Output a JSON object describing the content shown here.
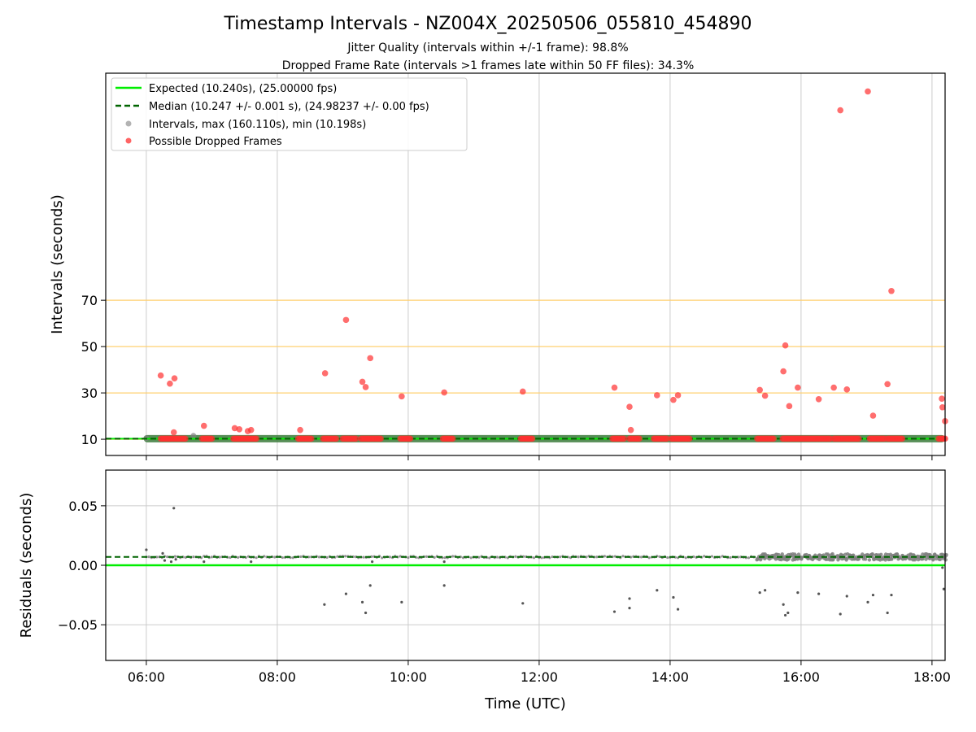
{
  "title": "Timestamp Intervals - NZ004X_20250506_055810_454890",
  "subtitle_line1": "Jitter Quality (intervals within +/-1 frame): 98.8%",
  "subtitle_line2": "Dropped Frame Rate (intervals >1 frames late within 50 FF files): 34.3%",
  "colors": {
    "expected": "#00ee00",
    "median": "#006400",
    "intervals": "#808080",
    "dropped": "#ff3030",
    "threshold": "#ffd070",
    "grid": "#cccccc",
    "band": "#3a7a3a"
  },
  "chart_data": [
    {
      "type": "scatter",
      "name": "intervals",
      "xlabel": "",
      "ylabel": "Intervals (seconds)",
      "x_unit": "hours UTC",
      "xlim": [
        5.38,
        18.2
      ],
      "ylim": [
        3,
        168
      ],
      "yticks": [
        10,
        30,
        50,
        70
      ],
      "ytick_labels": [
        "10",
        "30",
        "50",
        "70"
      ],
      "threshold_lines": [
        10,
        30,
        50,
        70
      ],
      "expected_value": 10.24,
      "median_value": 10.247,
      "legend": {
        "position": "top-left",
        "entries": [
          {
            "label": "Expected (10.240s), (25.00000 fps)",
            "style": "line-solid"
          },
          {
            "label": "Median (10.247 +/- 0.001 s), (24.98237 +/- 0.00 fps)",
            "style": "line-dashed"
          },
          {
            "label": "Intervals, max (160.110s), min (10.198s)",
            "style": "marker-gray"
          },
          {
            "label": "Possible Dropped Frames",
            "style": "marker-red"
          }
        ]
      },
      "interval_band": [
        6.0,
        18.2
      ],
      "dropped_outliers": [
        {
          "t": 6.22,
          "v": 37.5
        },
        {
          "t": 6.36,
          "v": 34.0
        },
        {
          "t": 6.43,
          "v": 36.3
        },
        {
          "t": 6.42,
          "v": 13.0
        },
        {
          "t": 6.88,
          "v": 15.8
        },
        {
          "t": 7.35,
          "v": 14.8
        },
        {
          "t": 7.42,
          "v": 14.3
        },
        {
          "t": 7.55,
          "v": 13.5
        },
        {
          "t": 7.6,
          "v": 14.0
        },
        {
          "t": 8.35,
          "v": 14.0
        },
        {
          "t": 8.73,
          "v": 38.5
        },
        {
          "t": 9.05,
          "v": 61.5
        },
        {
          "t": 9.3,
          "v": 34.8
        },
        {
          "t": 9.35,
          "v": 32.5
        },
        {
          "t": 9.42,
          "v": 45.0
        },
        {
          "t": 9.9,
          "v": 28.5
        },
        {
          "t": 10.55,
          "v": 30.2
        },
        {
          "t": 11.75,
          "v": 30.6
        },
        {
          "t": 13.15,
          "v": 32.3
        },
        {
          "t": 13.38,
          "v": 24.0
        },
        {
          "t": 13.4,
          "v": 14.0
        },
        {
          "t": 13.8,
          "v": 29.0
        },
        {
          "t": 14.05,
          "v": 27.0
        },
        {
          "t": 14.12,
          "v": 29.0
        },
        {
          "t": 15.37,
          "v": 31.3
        },
        {
          "t": 15.45,
          "v": 28.8
        },
        {
          "t": 15.73,
          "v": 39.3
        },
        {
          "t": 15.76,
          "v": 50.5
        },
        {
          "t": 15.82,
          "v": 24.3
        },
        {
          "t": 15.95,
          "v": 32.3
        },
        {
          "t": 16.27,
          "v": 27.3
        },
        {
          "t": 16.5,
          "v": 32.3
        },
        {
          "t": 16.6,
          "v": 152.0
        },
        {
          "t": 16.7,
          "v": 31.5
        },
        {
          "t": 17.02,
          "v": 160.11
        },
        {
          "t": 17.1,
          "v": 20.2
        },
        {
          "t": 17.32,
          "v": 33.8
        },
        {
          "t": 17.38,
          "v": 74.0
        },
        {
          "t": 18.15,
          "v": 27.5
        },
        {
          "t": 18.16,
          "v": 23.8
        },
        {
          "t": 18.2,
          "v": 17.8
        }
      ],
      "dropped_clusters_at_baseline": [
        [
          6.22,
          6.6
        ],
        [
          6.85,
          7.0
        ],
        [
          7.33,
          7.7
        ],
        [
          8.32,
          8.52
        ],
        [
          8.7,
          8.9
        ],
        [
          9.0,
          9.2
        ],
        [
          9.28,
          9.6
        ],
        [
          9.88,
          10.05
        ],
        [
          10.53,
          10.7
        ],
        [
          11.72,
          11.9
        ],
        [
          13.12,
          13.3
        ],
        [
          13.38,
          13.55
        ],
        [
          13.75,
          13.95
        ],
        [
          14.02,
          14.3
        ],
        [
          15.33,
          15.6
        ],
        [
          15.72,
          16.2
        ],
        [
          16.22,
          16.45
        ],
        [
          16.5,
          16.65
        ],
        [
          16.68,
          16.9
        ],
        [
          17.05,
          17.28
        ],
        [
          17.32,
          17.55
        ],
        [
          18.1,
          18.2
        ]
      ]
    },
    {
      "type": "scatter",
      "name": "residuals",
      "xlabel": "Time (UTC)",
      "ylabel": "Residuals (seconds)",
      "xlim": [
        5.38,
        18.2
      ],
      "ylim": [
        -0.08,
        0.08
      ],
      "yticks": [
        0.05,
        0.0,
        -0.05
      ],
      "ytick_labels": [
        "0.05",
        "0.00",
        "−0.05"
      ],
      "xticks": [
        6,
        8,
        10,
        12,
        14,
        16,
        18
      ],
      "xtick_labels": [
        "06:00",
        "08:00",
        "10:00",
        "12:00",
        "14:00",
        "16:00",
        "18:00"
      ],
      "expected_value": 0.0,
      "median_value": 0.007,
      "baseline_value": 0.007,
      "outliers": [
        {
          "t": 6.0,
          "v": 0.013
        },
        {
          "t": 6.25,
          "v": 0.01
        },
        {
          "t": 6.28,
          "v": 0.004
        },
        {
          "t": 6.38,
          "v": 0.003
        },
        {
          "t": 6.42,
          "v": 0.048
        },
        {
          "t": 6.45,
          "v": 0.005
        },
        {
          "t": 6.88,
          "v": 0.003
        },
        {
          "t": 7.6,
          "v": 0.003
        },
        {
          "t": 8.72,
          "v": -0.033
        },
        {
          "t": 9.05,
          "v": -0.024
        },
        {
          "t": 9.3,
          "v": -0.031
        },
        {
          "t": 9.35,
          "v": -0.04
        },
        {
          "t": 9.42,
          "v": -0.017
        },
        {
          "t": 9.45,
          "v": 0.003
        },
        {
          "t": 9.9,
          "v": -0.031
        },
        {
          "t": 10.55,
          "v": -0.017
        },
        {
          "t": 10.55,
          "v": 0.003
        },
        {
          "t": 11.75,
          "v": -0.032
        },
        {
          "t": 13.15,
          "v": -0.039
        },
        {
          "t": 13.38,
          "v": -0.028
        },
        {
          "t": 13.38,
          "v": -0.036
        },
        {
          "t": 13.8,
          "v": -0.021
        },
        {
          "t": 14.05,
          "v": -0.027
        },
        {
          "t": 14.12,
          "v": -0.037
        },
        {
          "t": 15.37,
          "v": -0.023
        },
        {
          "t": 15.45,
          "v": -0.021
        },
        {
          "t": 15.73,
          "v": -0.033
        },
        {
          "t": 15.76,
          "v": -0.042
        },
        {
          "t": 15.8,
          "v": -0.04
        },
        {
          "t": 15.95,
          "v": -0.023
        },
        {
          "t": 16.27,
          "v": -0.024
        },
        {
          "t": 16.6,
          "v": -0.041
        },
        {
          "t": 16.7,
          "v": -0.026
        },
        {
          "t": 17.02,
          "v": -0.031
        },
        {
          "t": 17.1,
          "v": -0.025
        },
        {
          "t": 17.32,
          "v": -0.04
        },
        {
          "t": 17.38,
          "v": -0.025
        },
        {
          "t": 18.16,
          "v": -0.002
        },
        {
          "t": 18.18,
          "v": -0.02
        }
      ],
      "dense_region": [
        15.3,
        18.2
      ]
    }
  ]
}
